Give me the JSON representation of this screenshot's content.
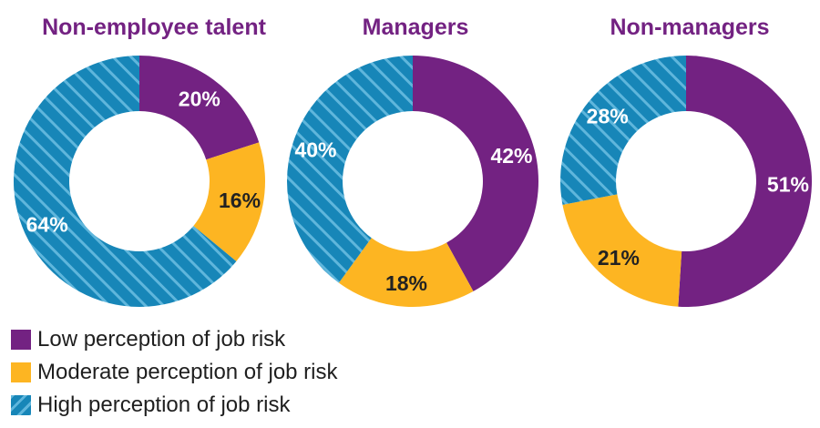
{
  "chart_data": [
    {
      "type": "pie",
      "title": "Non-employee talent",
      "slices": [
        {
          "name": "Low perception of job risk",
          "value": 20,
          "label": "20%",
          "color": "#732282"
        },
        {
          "name": "Moderate perception of job risk",
          "value": 16,
          "label": "16%",
          "color": "#FDB522"
        },
        {
          "name": "High perception of job risk",
          "value": 64,
          "label": "64%",
          "color": "#1786B8"
        }
      ]
    },
    {
      "type": "pie",
      "title": "Managers",
      "slices": [
        {
          "name": "Low perception of job risk",
          "value": 42,
          "label": "42%",
          "color": "#732282"
        },
        {
          "name": "Moderate perception of job risk",
          "value": 18,
          "label": "18%",
          "color": "#FDB522"
        },
        {
          "name": "High perception of job risk",
          "value": 40,
          "label": "40%",
          "color": "#1786B8"
        }
      ]
    },
    {
      "type": "pie",
      "title": "Non-managers",
      "slices": [
        {
          "name": "Low perception of job risk",
          "value": 51,
          "label": "51%",
          "color": "#732282"
        },
        {
          "name": "Moderate perception of job risk",
          "value": 21,
          "label": "21%",
          "color": "#FDB522"
        },
        {
          "name": "High perception of job risk",
          "value": 28,
          "label": "28%",
          "color": "#1786B8"
        }
      ]
    }
  ],
  "legend": [
    {
      "label": "Low perception of job risk",
      "color": "#732282"
    },
    {
      "label": "Moderate perception of job risk",
      "color": "#FDB522"
    },
    {
      "label": "High perception of job risk",
      "color": "#1786B8"
    }
  ],
  "colors": {
    "title": "#732282",
    "label_on_dark": "#ffffff",
    "label_on_light": "#222222",
    "hatch": "#5fb6dc"
  }
}
